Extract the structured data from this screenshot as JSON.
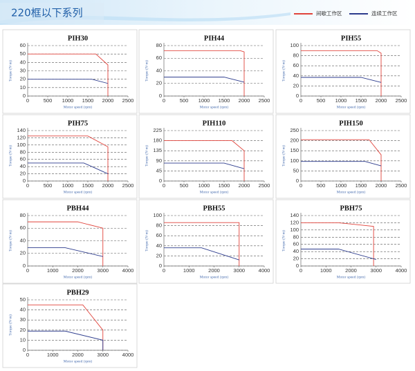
{
  "title": "220框以下系列",
  "legend": [
    {
      "name": "间歇工作区",
      "color": "#e0423a"
    },
    {
      "name": "连续工作区",
      "color": "#2b3a8c"
    }
  ],
  "chart_data": [
    {
      "type": "line",
      "title": "PIH30",
      "xlabel": "Motor speed (rpm)",
      "ylabel": "Torque (N·m)",
      "xlim": [
        0,
        2500
      ],
      "xticks": [
        0,
        500,
        1000,
        1500,
        2000,
        2500
      ],
      "ylim": [
        0,
        60
      ],
      "yticks": [
        0,
        10,
        20,
        30,
        40,
        50,
        60
      ],
      "grid": true,
      "series": [
        {
          "color": "#e0423a",
          "x": [
            0,
            1700,
            2000,
            2000
          ],
          "values": [
            50,
            50,
            37,
            0
          ]
        },
        {
          "color": "#2b3a8c",
          "x": [
            0,
            1600,
            2000
          ],
          "values": [
            20,
            20,
            15
          ]
        }
      ]
    },
    {
      "type": "line",
      "title": "PIH44",
      "xlabel": "Motor speed (rpm)",
      "ylabel": "Torque (N·m)",
      "xlim": [
        0,
        2500
      ],
      "xticks": [
        0,
        500,
        1000,
        1500,
        2000,
        2500
      ],
      "ylim": [
        0,
        80
      ],
      "yticks": [
        0,
        20,
        40,
        60,
        80
      ],
      "grid": true,
      "series": [
        {
          "color": "#e0423a",
          "x": [
            0,
            1900,
            2000,
            2000
          ],
          "values": [
            72,
            72,
            70,
            0
          ]
        },
        {
          "color": "#2b3a8c",
          "x": [
            0,
            1500,
            2000
          ],
          "values": [
            30,
            30,
            22
          ]
        }
      ]
    },
    {
      "type": "line",
      "title": "PIH55",
      "xlabel": "Motor speed (rpm)",
      "ylabel": "Torque (N·m)",
      "xlim": [
        0,
        2500
      ],
      "xticks": [
        0,
        500,
        1000,
        1500,
        2000,
        2500
      ],
      "ylim": [
        0,
        100
      ],
      "yticks": [
        0,
        20,
        40,
        60,
        80,
        100
      ],
      "grid": true,
      "series": [
        {
          "color": "#e0423a",
          "x": [
            0,
            1900,
            2000,
            2000
          ],
          "values": [
            90,
            90,
            85,
            0
          ]
        },
        {
          "color": "#2b3a8c",
          "x": [
            0,
            1500,
            2000
          ],
          "values": [
            37,
            37,
            27
          ]
        }
      ]
    },
    {
      "type": "line",
      "title": "PIH75",
      "xlabel": "Motor speed (rpm)",
      "ylabel": "Torque (N·m)",
      "xlim": [
        0,
        2500
      ],
      "xticks": [
        0,
        500,
        1000,
        1500,
        2000,
        2500
      ],
      "ylim": [
        0,
        140
      ],
      "yticks": [
        0,
        20,
        40,
        60,
        80,
        100,
        120,
        140
      ],
      "grid": true,
      "series": [
        {
          "color": "#e0423a",
          "x": [
            0,
            1500,
            2000,
            2000
          ],
          "values": [
            125,
            125,
            95,
            0
          ]
        },
        {
          "color": "#2b3a8c",
          "x": [
            0,
            1400,
            2000
          ],
          "values": [
            50,
            50,
            20
          ]
        }
      ]
    },
    {
      "type": "line",
      "title": "PIH110",
      "xlabel": "Motor speed (rpm)",
      "ylabel": "Torque (N·m)",
      "xlim": [
        0,
        2500
      ],
      "xticks": [
        0,
        500,
        1000,
        1500,
        2000,
        2500
      ],
      "ylim": [
        0,
        225
      ],
      "yticks": [
        0,
        45,
        90,
        135,
        180,
        225
      ],
      "grid": true,
      "series": [
        {
          "color": "#e0423a",
          "x": [
            0,
            1700,
            2000,
            2000
          ],
          "values": [
            180,
            180,
            135,
            0
          ]
        },
        {
          "color": "#2b3a8c",
          "x": [
            0,
            1500,
            2000
          ],
          "values": [
            80,
            80,
            55
          ]
        }
      ]
    },
    {
      "type": "line",
      "title": "PIH150",
      "xlabel": "Motor speed (rpm)",
      "ylabel": "Torque (N·m)",
      "xlim": [
        0,
        2500
      ],
      "xticks": [
        0,
        500,
        1000,
        1500,
        2000,
        2500
      ],
      "ylim": [
        0,
        250
      ],
      "yticks": [
        0,
        50,
        100,
        150,
        200,
        250
      ],
      "grid": true,
      "series": [
        {
          "color": "#e0423a",
          "x": [
            0,
            1700,
            2000,
            2000
          ],
          "values": [
            205,
            205,
            130,
            0
          ]
        },
        {
          "color": "#2b3a8c",
          "x": [
            0,
            1600,
            2000
          ],
          "values": [
            97,
            97,
            75
          ]
        }
      ]
    },
    {
      "type": "line",
      "title": "PBH44",
      "xlabel": "Motor speed (rpm)",
      "ylabel": "Torque (N·m)",
      "xlim": [
        0,
        4000
      ],
      "xticks": [
        0,
        1000,
        2000,
        3000,
        4000
      ],
      "ylim": [
        0,
        80
      ],
      "yticks": [
        0,
        20,
        40,
        60,
        80
      ],
      "grid": true,
      "series": [
        {
          "color": "#e0423a",
          "x": [
            0,
            2000,
            3000,
            3000
          ],
          "values": [
            70,
            70,
            60,
            0
          ]
        },
        {
          "color": "#2b3a8c",
          "x": [
            0,
            1500,
            3000
          ],
          "values": [
            29,
            29,
            15
          ]
        }
      ]
    },
    {
      "type": "line",
      "title": "PBH55",
      "xlabel": "Motor speed (rpm)",
      "ylabel": "Torque (N·m)",
      "xlim": [
        0,
        4000
      ],
      "xticks": [
        0,
        1000,
        2000,
        3000,
        4000
      ],
      "ylim": [
        0,
        100
      ],
      "yticks": [
        0,
        20,
        40,
        60,
        80,
        100
      ],
      "grid": true,
      "series": [
        {
          "color": "#e0423a",
          "x": [
            0,
            3000,
            3000
          ],
          "values": [
            86,
            86,
            0
          ]
        },
        {
          "color": "#2b3a8c",
          "x": [
            0,
            1500,
            3000
          ],
          "values": [
            36,
            36,
            12
          ]
        }
      ]
    },
    {
      "type": "line",
      "title": "PBH75",
      "xlabel": "Motor speed (rpm)",
      "ylabel": "Torque (N·m)",
      "xlim": [
        0,
        4000
      ],
      "xticks": [
        0,
        1000,
        2000,
        3000,
        4000
      ],
      "ylim": [
        0,
        140
      ],
      "yticks": [
        0,
        20,
        40,
        60,
        80,
        100,
        120,
        140
      ],
      "grid": true,
      "series": [
        {
          "color": "#e0423a",
          "x": [
            0,
            1500,
            2900,
            2900
          ],
          "values": [
            120,
            120,
            110,
            0
          ]
        },
        {
          "color": "#2b3a8c",
          "x": [
            0,
            1500,
            3000
          ],
          "values": [
            47,
            47,
            18
          ]
        }
      ]
    },
    {
      "type": "line",
      "title": "PBH29",
      "xlabel": "Motor speed (rpm)",
      "ylabel": "Torque (N·m)",
      "xlim": [
        0,
        4000
      ],
      "xticks": [
        0,
        1000,
        2000,
        3000,
        4000
      ],
      "ylim": [
        0,
        50
      ],
      "yticks": [
        0,
        10,
        20,
        30,
        40,
        50
      ],
      "grid": true,
      "series": [
        {
          "color": "#e0423a",
          "x": [
            0,
            2200,
            3000,
            3000
          ],
          "values": [
            45,
            45,
            20,
            0
          ]
        },
        {
          "color": "#2b3a8c",
          "x": [
            0,
            1500,
            3000,
            3000
          ],
          "values": [
            19,
            19,
            10,
            0
          ]
        }
      ]
    }
  ]
}
